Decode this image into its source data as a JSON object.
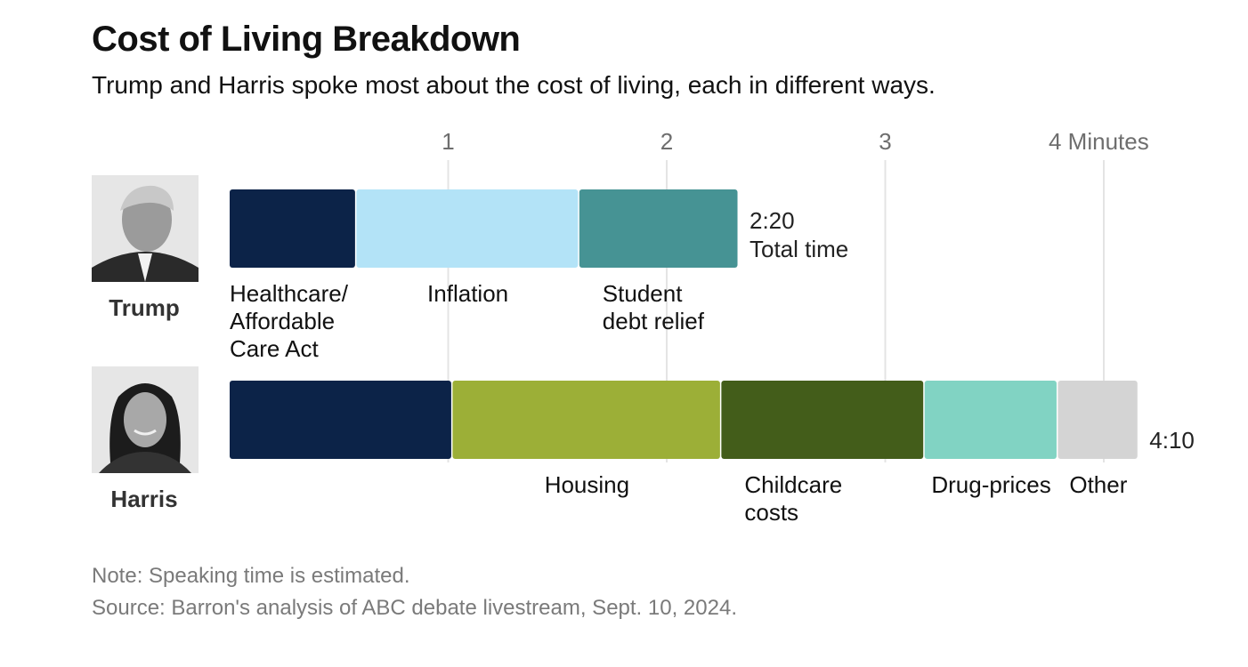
{
  "header": {
    "title": "Cost of Living Breakdown",
    "subtitle": "Trump and Harris spoke most about the cost of living, each in different ways."
  },
  "footer": {
    "note": "Note: Speaking time is estimated.",
    "source": "Source: Barron's analysis of ABC debate livestream, Sept. 10, 2024."
  },
  "chart_data": {
    "type": "bar",
    "orientation": "horizontal-stacked",
    "x_unit": "minutes",
    "xlim": [
      0,
      4
    ],
    "x_ticks": [
      {
        "value": 1,
        "label": "1"
      },
      {
        "value": 2,
        "label": "2"
      },
      {
        "value": 3,
        "label": "3"
      },
      {
        "value": 4,
        "label": "4 Minutes"
      }
    ],
    "grid": true,
    "rows": [
      {
        "name": "Trump",
        "photo": "trump-portrait",
        "total_label": [
          "2:20",
          "Total time"
        ],
        "segments": [
          {
            "label": [
              "Healthcare/",
              "Affordable",
              "Care Act"
            ],
            "minutes": 0.58,
            "color": "#0c2348",
            "label_anchor": "start"
          },
          {
            "label": [
              "Inflation"
            ],
            "minutes": 1.02,
            "color": "#b3e3f7",
            "label_anchor": "middle"
          },
          {
            "label": [
              "Student",
              "debt relief"
            ],
            "minutes": 0.73,
            "color": "#469394",
            "label_anchor": "start"
          }
        ]
      },
      {
        "name": "Harris",
        "photo": "harris-portrait",
        "total_label": [
          "4:10"
        ],
        "segments": [
          {
            "label": [],
            "minutes": 1.02,
            "color": "#0c2348",
            "label_anchor": "middle"
          },
          {
            "label": [
              "Housing"
            ],
            "minutes": 1.23,
            "color": "#9caf37",
            "label_anchor": "middle"
          },
          {
            "label": [
              "Childcare",
              "costs"
            ],
            "minutes": 0.93,
            "color": "#435d1a",
            "label_anchor": "start"
          },
          {
            "label": [
              "Drug-prices"
            ],
            "minutes": 0.61,
            "color": "#81d3c3",
            "label_anchor": "middle"
          },
          {
            "label": [
              "Other"
            ],
            "minutes": 0.37,
            "color": "#d4d4d4",
            "label_anchor": "middle"
          }
        ]
      }
    ]
  }
}
